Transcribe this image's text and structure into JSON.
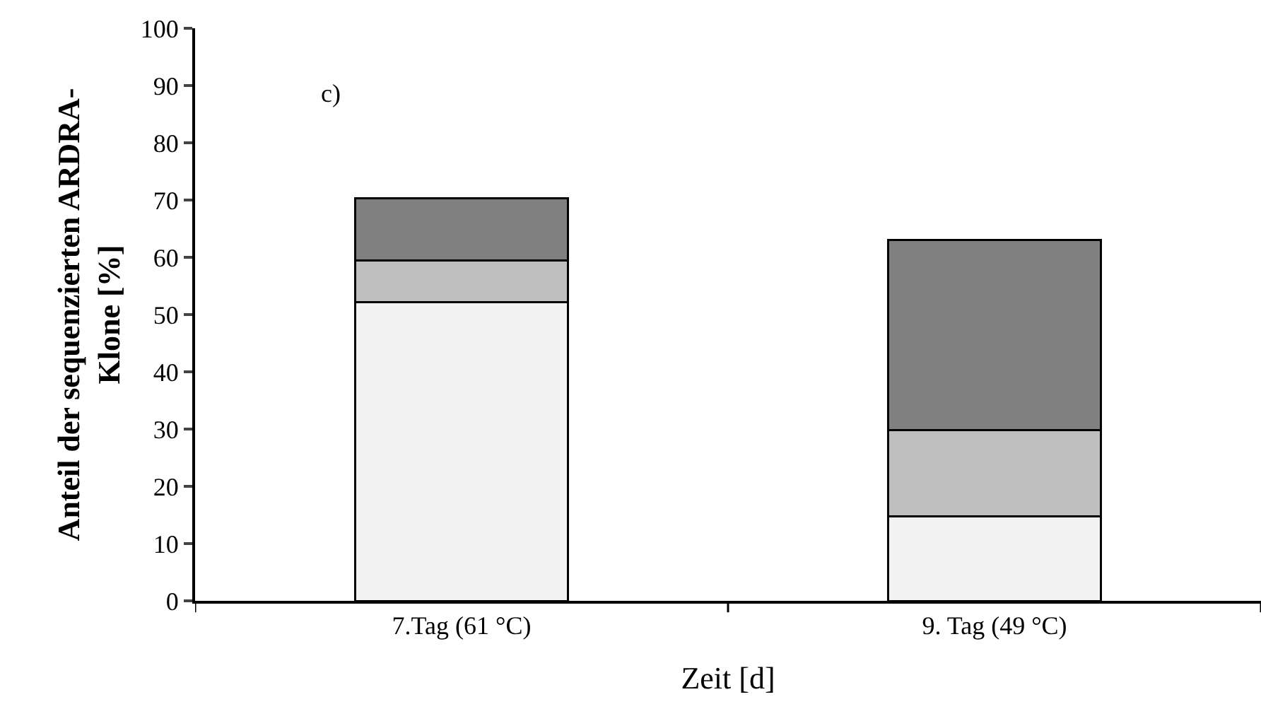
{
  "chart_data": {
    "type": "bar",
    "stacked": true,
    "xlabel": "Zeit [d]",
    "ylabel": "Anteil der sequenzierten ARDRA-\nKlone [%]",
    "categories": [
      "7.Tag (61 °C)",
      "9. Tag (49 °C)"
    ],
    "series": [
      {
        "color": "#f2f2f2",
        "values": [
          52.2,
          14.8
        ]
      },
      {
        "color": "#bfbfbf",
        "values": [
          7.3,
          15.0
        ]
      },
      {
        "color": "#808080",
        "values": [
          10.8,
          33.2
        ]
      }
    ],
    "ylim": [
      0,
      100
    ],
    "yticks": [
      0,
      10,
      20,
      30,
      40,
      50,
      60,
      70,
      80,
      90,
      100
    ],
    "grid": false,
    "annotations": [
      "c)"
    ]
  }
}
